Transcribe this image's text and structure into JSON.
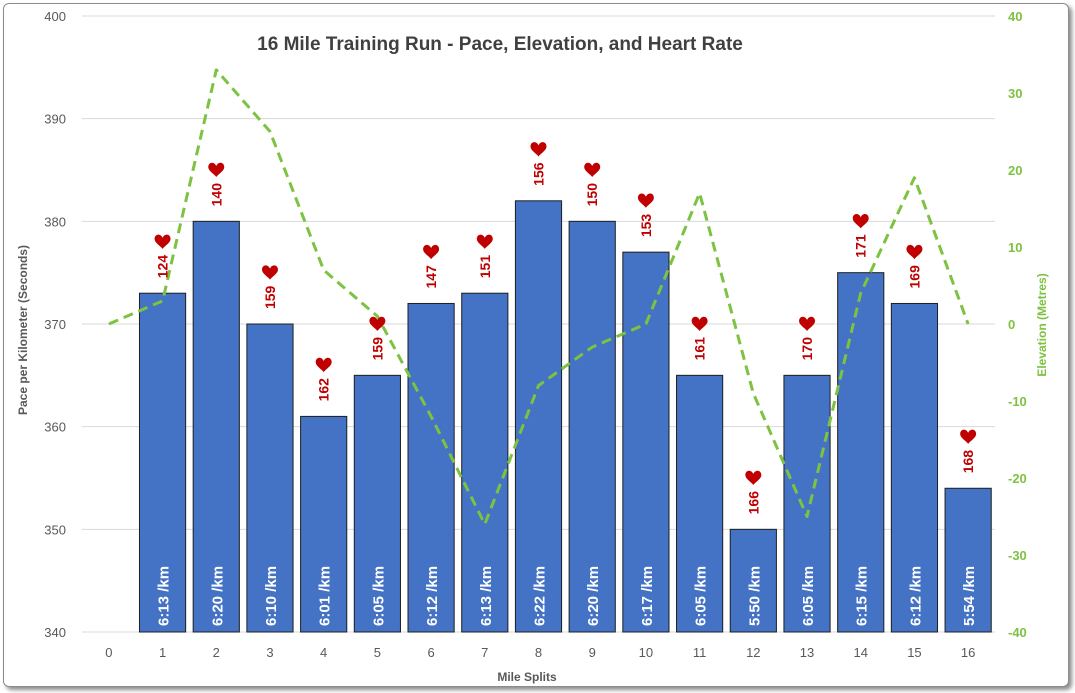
{
  "chart_data": {
    "type": "bar",
    "title": "16 Mile Training Run - Pace, Elevation, and Heart Rate",
    "xlabel": "Mile Splits",
    "ylabel": "Pace per Kilometer (Seconds)",
    "y2label": "Elevation (Metres)",
    "x_ticks": [
      0,
      1,
      2,
      3,
      4,
      5,
      6,
      7,
      8,
      9,
      10,
      11,
      12,
      13,
      14,
      15,
      16
    ],
    "ylim": [
      340,
      400
    ],
    "y_ticks": [
      340,
      350,
      360,
      370,
      380,
      390,
      400
    ],
    "y2lim": [
      -40,
      40
    ],
    "y2_ticks": [
      -40,
      -30,
      -20,
      -10,
      0,
      10,
      20,
      30,
      40
    ],
    "grid": true,
    "legend": "none",
    "colors": {
      "bars": "#4472c4",
      "elevation": "#7dc241",
      "heart": "#c00000"
    },
    "series": [
      {
        "type": "bar",
        "x": [
          1,
          2,
          3,
          4,
          5,
          6,
          7,
          8,
          9,
          10,
          11,
          12,
          13,
          14,
          15,
          16
        ],
        "values": [
          373,
          380,
          370,
          361,
          365,
          372,
          373,
          382,
          380,
          377,
          365,
          350,
          365,
          375,
          372,
          354
        ],
        "labels": [
          "6:13 /km",
          "6:20 /km",
          "6:10 /km",
          "6:01 /km",
          "6:05 /km",
          "6:12 /km",
          "6:13 /km",
          "6:22 /km",
          "6:20 /km",
          "6:17 /km",
          "6:05 /km",
          "5:50 /km",
          "6:05 /km",
          "6:15 /km",
          "6:12 /km",
          "5:54 /km"
        ]
      },
      {
        "type": "line",
        "axis": "right",
        "style": "dashed",
        "x": [
          0,
          1,
          2,
          3,
          4,
          5,
          6,
          7,
          8,
          9,
          10,
          11,
          12,
          13,
          14,
          15,
          16
        ],
        "values": [
          0,
          3,
          33,
          25,
          7,
          1,
          -12,
          -26,
          -8,
          -3,
          0,
          17,
          -9,
          -25,
          4,
          19,
          0
        ]
      },
      {
        "type": "marker",
        "icon": "heart-icon",
        "axis": "left",
        "x": [
          1,
          2,
          3,
          4,
          5,
          6,
          7,
          8,
          9,
          10,
          11,
          12,
          13,
          14,
          15,
          16
        ],
        "values": [
          378,
          385,
          375,
          366,
          370,
          377,
          378,
          387,
          385,
          382,
          370,
          355,
          370,
          380,
          377,
          359
        ],
        "labels": [
          "124",
          "140",
          "159",
          "162",
          "159",
          "147",
          "151",
          "156",
          "150",
          "153",
          "161",
          "166",
          "170",
          "171",
          "169",
          "168"
        ]
      }
    ]
  }
}
